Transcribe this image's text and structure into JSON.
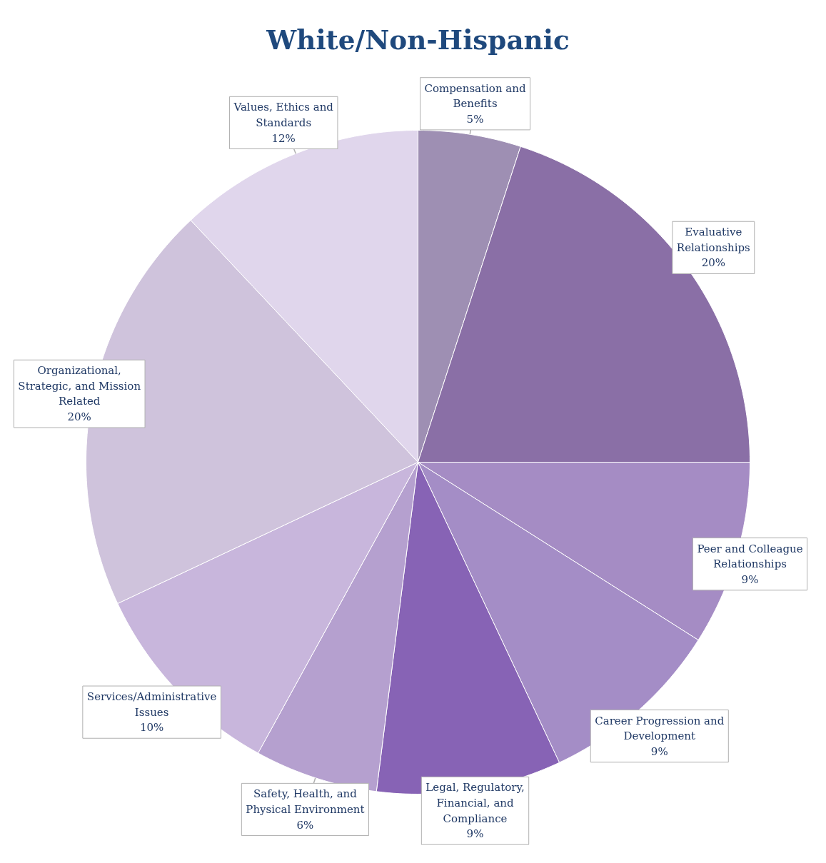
{
  "chart_data": {
    "type": "pie",
    "title": "White/Non-Hispanic",
    "categories": [
      "Compensation and Benefits",
      "Evaluative Relationships",
      "Peer and Colleague Relationships",
      "Career Progression and Development",
      "Legal, Regulatory, Financial, and Compliance",
      "Safety, Health, and Physical Environment",
      "Services/Administrative Issues",
      "Organizational, Strategic, and Mission Related",
      "Values, Ethics and Standards"
    ],
    "values": [
      5,
      20,
      9,
      9,
      9,
      6,
      10,
      20,
      12
    ],
    "value_labels": [
      "5%",
      "20%",
      "9%",
      "9%",
      "9%",
      "6%",
      "10%",
      "20%",
      "12%"
    ],
    "colors": [
      "#9e8fb3",
      "#8a6fa6",
      "#a58cc4",
      "#a48dc6",
      "#8763b5",
      "#b5a0cf",
      "#c8b6dc",
      "#cfc3dc",
      "#e0d6ec"
    ]
  }
}
